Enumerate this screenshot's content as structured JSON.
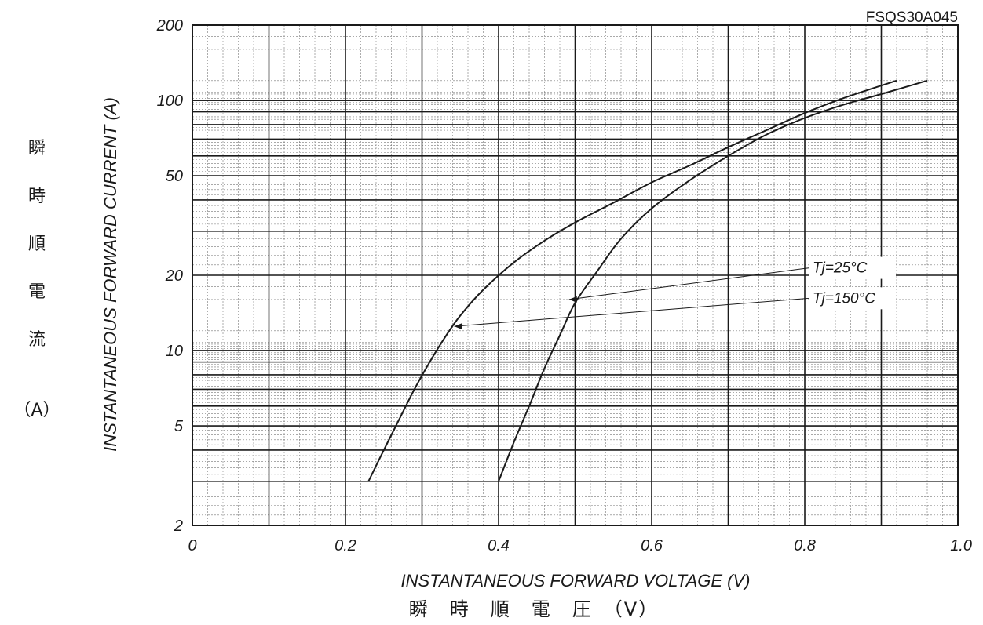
{
  "chart_data": {
    "type": "line",
    "title": "FSQS30A045",
    "xlabel": "INSTANTANEOUS FORWARD VOLTAGE (V)",
    "xlabel_jp": "瞬　時　順　電　圧　（V）",
    "ylabel": "INSTANTANEOUS FORWARD CURRENT (A)",
    "ylabel_jp": [
      "瞬",
      "時",
      "順",
      "電",
      "流",
      "（A）"
    ],
    "x_scale": "linear",
    "y_scale": "log",
    "xlim": [
      0,
      1.0
    ],
    "ylim": [
      2,
      200
    ],
    "x_ticks": [
      0,
      0.2,
      0.4,
      0.6,
      0.8,
      1.0
    ],
    "x_tick_labels": [
      "0",
      "0.2",
      "0.4",
      "0.6",
      "0.8",
      "1.0"
    ],
    "y_ticks": [
      2,
      5,
      10,
      20,
      50,
      100,
      200
    ],
    "y_tick_labels": [
      "2",
      "5",
      "10",
      "20",
      "50",
      "100",
      "200"
    ],
    "grid": true,
    "series": [
      {
        "name": "Tj=150°C",
        "x": [
          0.23,
          0.25,
          0.27,
          0.29,
          0.31,
          0.33,
          0.35,
          0.38,
          0.42,
          0.46,
          0.5,
          0.55,
          0.6,
          0.65,
          0.7,
          0.75,
          0.8,
          0.85,
          0.92
        ],
        "y": [
          3.0,
          4.0,
          5.3,
          7.0,
          9.0,
          11.3,
          13.8,
          17.5,
          22.5,
          27.5,
          32.5,
          39.0,
          47.0,
          55.0,
          65.0,
          76.0,
          89.0,
          102.0,
          120.0
        ]
      },
      {
        "name": "Tj=25°C",
        "x": [
          0.4,
          0.42,
          0.44,
          0.46,
          0.48,
          0.5,
          0.53,
          0.56,
          0.6,
          0.65,
          0.7,
          0.75,
          0.8,
          0.85,
          0.9,
          0.96
        ],
        "y": [
          3.0,
          4.3,
          6.0,
          8.5,
          11.5,
          15.5,
          21.0,
          28.0,
          37.0,
          48.0,
          60.0,
          73.0,
          85.0,
          96.0,
          106.0,
          120.0
        ]
      }
    ],
    "annotations": [
      {
        "text": "Tj=25°C",
        "target_series": "Tj=25°C",
        "point": [
          0.49,
          16
        ]
      },
      {
        "text": "Tj=150°C",
        "target_series": "Tj=150°C",
        "point": [
          0.34,
          12.5
        ]
      }
    ]
  }
}
